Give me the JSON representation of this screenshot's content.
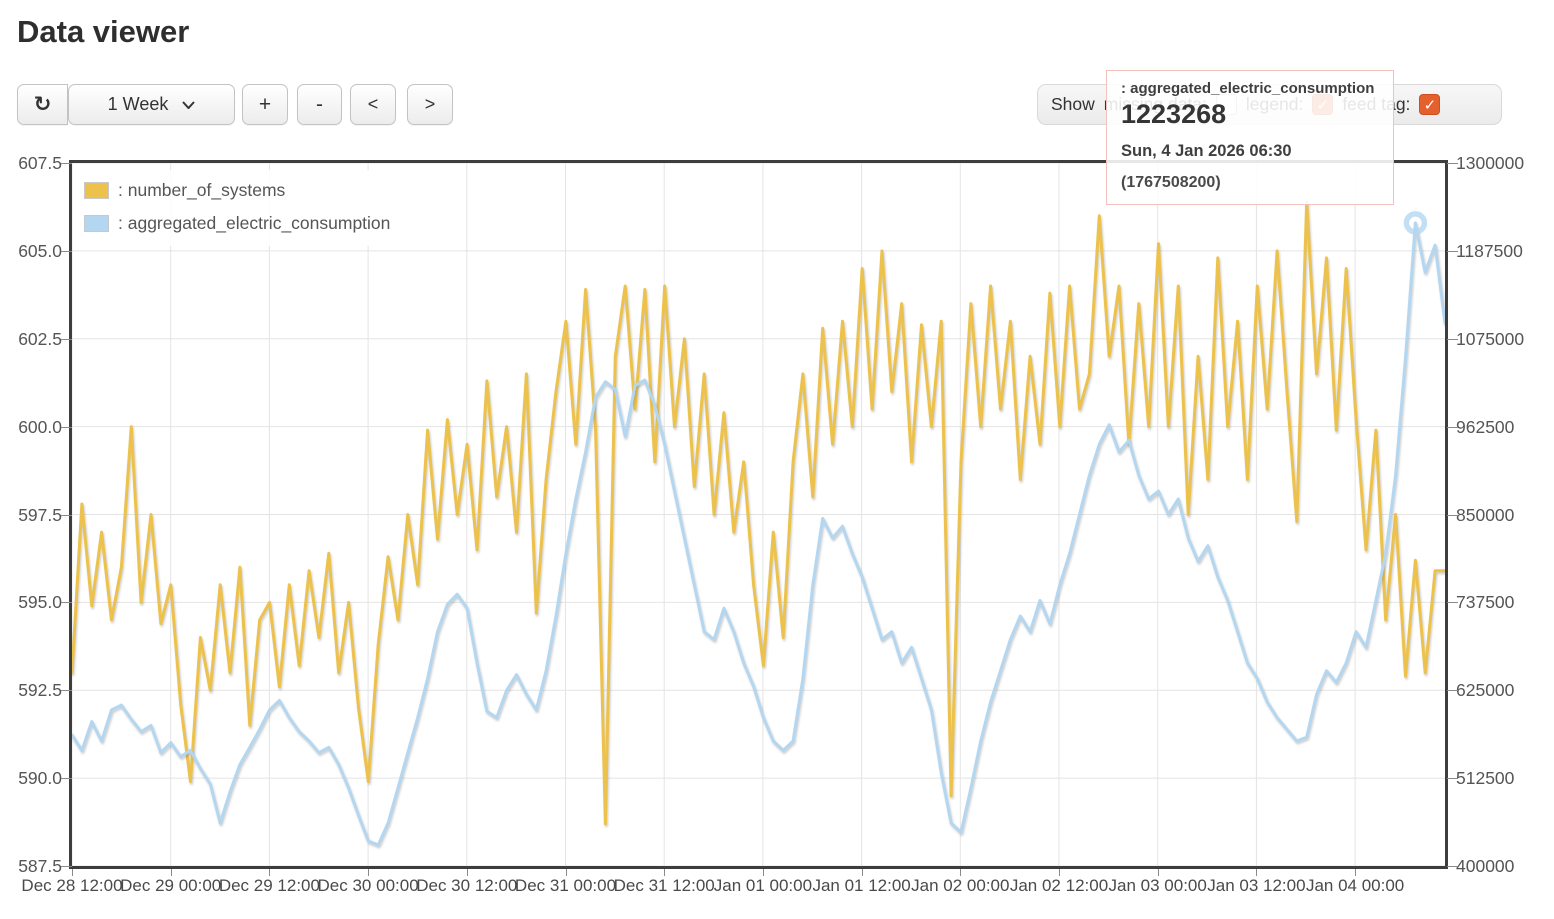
{
  "title": "Data viewer",
  "toolbar": {
    "refresh_glyph": "↻",
    "range_value": "1 Week",
    "zoom_in": "+",
    "zoom_out": "-",
    "pan_left": "<",
    "pan_right": ">"
  },
  "controls": {
    "show_label": "Show",
    "check_glyph": "✓",
    "accent_color": "#e4602c",
    "items": [
      {
        "key": "missing_data",
        "label": "missing data:",
        "checked": false
      },
      {
        "key": "legend",
        "label": "legend:",
        "checked": true
      },
      {
        "key": "feed_tag",
        "label": "feed tag:",
        "checked": true
      }
    ]
  },
  "tooltip": {
    "series_label": ": aggregated_electric_consumption",
    "value": "1223268",
    "datetime": "Sun, 4 Jan 2026 06:30",
    "epoch": "(1767508200)"
  },
  "chart_data": {
    "type": "line",
    "grid": true,
    "legend_position": "top-left",
    "x_axis": {
      "ticks": [
        "Dec 28 12:00",
        "Dec 29 00:00",
        "Dec 29 12:00",
        "Dec 30 00:00",
        "Dec 30 12:00",
        "Dec 31 00:00",
        "Dec 31 12:00",
        "Jan 01 00:00",
        "Jan 01 12:00",
        "Jan 02 00:00",
        "Jan 02 12:00",
        "Jan 03 00:00",
        "Jan 03 12:00",
        "Jan 04 00:00"
      ]
    },
    "y_left": {
      "min": 587.5,
      "max": 607.5,
      "ticks": [
        "607.5",
        "605.0",
        "602.5",
        "600.0",
        "597.5",
        "595.0",
        "592.5",
        "590.0",
        "587.5"
      ]
    },
    "y_right": {
      "min": 400000,
      "max": 1300000,
      "ticks": [
        "1300000",
        "1187500",
        "1075000",
        "962500",
        "850000",
        "737500",
        "625000",
        "512500",
        "400000"
      ]
    },
    "series": [
      {
        "name": "number_of_systems",
        "legend_label": ": number_of_systems",
        "color": "#ecc24c",
        "axis": "left",
        "values": [
          593.0,
          597.8,
          594.9,
          597.0,
          594.5,
          596.0,
          600.0,
          595.0,
          597.5,
          594.4,
          595.5,
          592.1,
          589.9,
          594.0,
          592.5,
          595.5,
          593.0,
          596.0,
          591.5,
          594.5,
          595.0,
          592.6,
          595.5,
          593.2,
          595.9,
          594.0,
          596.4,
          593.0,
          595.0,
          592.0,
          589.9,
          593.8,
          596.3,
          594.5,
          597.5,
          595.5,
          599.9,
          596.8,
          600.2,
          597.5,
          599.5,
          596.5,
          601.3,
          598.0,
          600.0,
          597.0,
          601.5,
          594.7,
          598.5,
          601.0,
          603.0,
          599.5,
          603.9,
          600.0,
          588.7,
          602.0,
          604.0,
          600.5,
          603.9,
          599.0,
          604.0,
          600.0,
          602.5,
          598.3,
          601.5,
          597.5,
          600.4,
          597.0,
          599.0,
          595.5,
          593.2,
          597.0,
          594.0,
          599.0,
          601.5,
          598.0,
          602.8,
          599.5,
          603.0,
          600.0,
          604.5,
          600.5,
          605.0,
          601.0,
          603.5,
          599.0,
          602.9,
          600.0,
          603.0,
          589.5,
          599.0,
          603.5,
          600.0,
          604.0,
          600.5,
          603.0,
          598.5,
          602.0,
          599.5,
          603.8,
          600.0,
          604.0,
          600.5,
          601.5,
          606.0,
          602.0,
          604.0,
          599.5,
          603.5,
          600.0,
          605.2,
          600.0,
          604.0,
          597.5,
          602.0,
          598.5,
          604.8,
          600.0,
          603.0,
          598.5,
          604.0,
          600.5,
          605.0,
          601.0,
          597.3,
          606.4,
          601.5,
          604.8,
          599.9,
          604.5,
          600.2,
          596.5,
          599.9,
          594.5,
          597.5,
          592.9,
          596.2,
          593.0,
          595.9,
          595.9
        ]
      },
      {
        "name": "aggregated_electric_consumption",
        "legend_label": ": aggregated_electric_consumption",
        "color": "#b4d7f1",
        "axis": "right",
        "values": [
          568000,
          548000,
          585000,
          560000,
          600000,
          606000,
          588000,
          572000,
          580000,
          545000,
          558000,
          540000,
          548000,
          525000,
          505000,
          455000,
          495000,
          530000,
          552000,
          575000,
          600000,
          612000,
          590000,
          572000,
          560000,
          545000,
          552000,
          530000,
          500000,
          465000,
          432000,
          427000,
          455000,
          500000,
          545000,
          590000,
          640000,
          700000,
          735000,
          748000,
          730000,
          660000,
          598000,
          590000,
          625000,
          645000,
          620000,
          600000,
          650000,
          720000,
          800000,
          870000,
          930000,
          1000000,
          1020000,
          1010000,
          950000,
          1015000,
          1022000,
          990000,
          940000,
          880000,
          820000,
          760000,
          700000,
          690000,
          730000,
          700000,
          660000,
          630000,
          590000,
          560000,
          548000,
          560000,
          640000,
          760000,
          845000,
          820000,
          835000,
          800000,
          770000,
          730000,
          690000,
          700000,
          660000,
          680000,
          640000,
          600000,
          520000,
          455000,
          443000,
          500000,
          560000,
          610000,
          650000,
          690000,
          720000,
          700000,
          740000,
          710000,
          760000,
          800000,
          850000,
          900000,
          940000,
          965000,
          930000,
          945000,
          900000,
          870000,
          880000,
          850000,
          870000,
          820000,
          790000,
          810000,
          770000,
          740000,
          700000,
          660000,
          640000,
          610000,
          590000,
          575000,
          560000,
          565000,
          620000,
          650000,
          635000,
          660000,
          700000,
          680000,
          740000,
          800000,
          900000,
          1050000,
          1223268,
          1160000,
          1195000,
          1095000
        ]
      }
    ],
    "marker": {
      "series": "aggregated_electric_consumption",
      "index": 136,
      "value": 1223268
    }
  }
}
